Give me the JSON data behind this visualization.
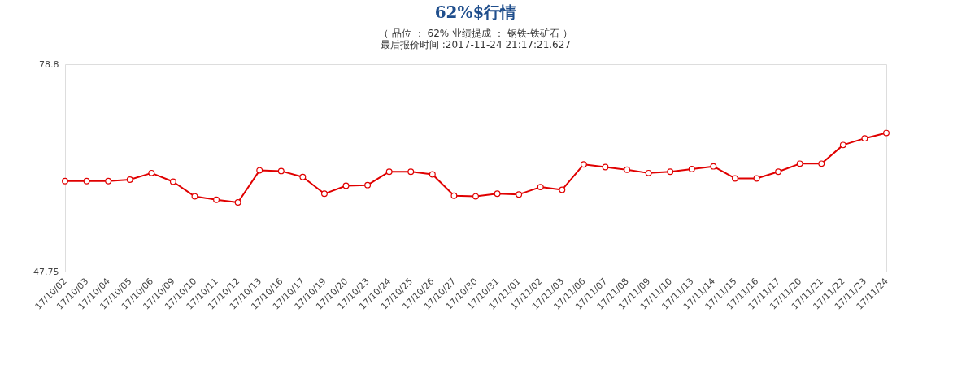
{
  "chart_data": {
    "type": "line",
    "title": "62%$行情",
    "subtitle": [
      "（ 品位 ： 62% 业绩提成 ： 钢铁-铁矿石 ）",
      "最后报价时间 :2017-11-24 21:17:21.627"
    ],
    "categories": [
      "17/10/02",
      "17/10/03",
      "17/10/04",
      "17/10/05",
      "17/10/06",
      "17/10/09",
      "17/10/10",
      "17/10/11",
      "17/10/12",
      "17/10/13",
      "17/10/16",
      "17/10/17",
      "17/10/19",
      "17/10/20",
      "17/10/23",
      "17/10/24",
      "17/10/25",
      "17/10/26",
      "17/10/27",
      "17/10/30",
      "17/10/31",
      "17/11/01",
      "17/11/02",
      "17/11/03",
      "17/11/06",
      "17/11/07",
      "17/11/08",
      "17/11/09",
      "17/11/10",
      "17/11/13",
      "17/11/14",
      "17/11/15",
      "17/11/16",
      "17/11/17",
      "17/11/20",
      "17/11/21",
      "17/11/22",
      "17/11/23",
      "17/11/24"
    ],
    "series": [
      {
        "color": "#e00000",
        "values": [
          61.3,
          61.3,
          61.3,
          61.5,
          62.5,
          61.2,
          59.0,
          58.5,
          58.1,
          62.9,
          62.8,
          61.9,
          59.4,
          60.6,
          60.7,
          62.7,
          62.7,
          62.3,
          59.1,
          59.0,
          59.4,
          59.3,
          60.4,
          60.0,
          63.8,
          63.4,
          63.0,
          62.5,
          62.7,
          63.1,
          63.5,
          61.7,
          61.7,
          62.7,
          63.9,
          63.9,
          66.7,
          67.7,
          68.5
        ]
      }
    ],
    "ylim": [
      47.75,
      78.8
    ],
    "yticks": [
      47.75,
      78.8
    ],
    "grid": false,
    "legend": false,
    "marker": "circle",
    "line_style": "solid"
  }
}
